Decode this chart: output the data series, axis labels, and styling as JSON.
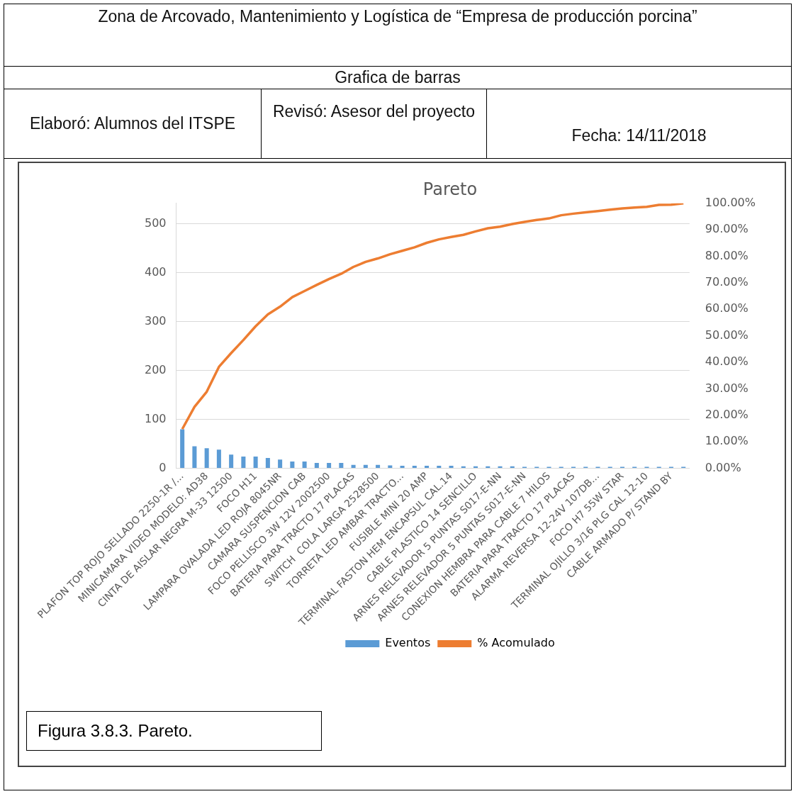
{
  "chart_data": {
    "type": "bar",
    "title": "Pareto",
    "annotations": [
      "Zona de Arcovado, Mantenimiento y Logística de “Empresa de producción porcina”",
      "Grafica de barras",
      "Elaboró: Alumnos del ITSPE",
      "Revisó:  Asesor del proyecto",
      "Fecha:   14/11/2018",
      "Figura 3.8.3. Pareto."
    ],
    "categories": [
      "PLAFON TOP ROJO SELLADO 2250-1R /...",
      null,
      "MINICAMARA VIDEO MODELO: AD38",
      null,
      "CINTA DE AISLAR NEGRA M-33 12500",
      null,
      "FOCO H11",
      null,
      "LAMPARA OVALADA LED ROJA 8045NR",
      null,
      "CAMARA SUSPENCION CAB",
      null,
      "FOCO PELLISCO 3W 12V 2002500",
      null,
      "BATERIA PARA TRACTO 17 PLACAS",
      null,
      "SWITCH  COLA LARGA 2528500",
      null,
      "TORRETA LED AMBAR TRACTO...",
      null,
      "FUSIBLE MINI 20 AMP",
      null,
      "TERMINAL FASTON HEM ENCAPSUL CAL.14",
      null,
      "CABLE PLASTICO 14 SENCILLO",
      null,
      "ARNES RELEVADOR 5 PUNTAS S017-E-NN",
      null,
      "ARNES RELEVADOR 5 PUNTAS S017-E-NN",
      null,
      "CONEXION HEMBRA PARA CABLE 7 HILOS",
      null,
      "BATERIA PARA TRACTO 17 PLACAS",
      null,
      "ALARMA REVERSA 12-24V 107DB...",
      null,
      "FOCO H7 55W STAR",
      null,
      "TERMINAL OJILLO 3/16 PLG CAL 12-10",
      null,
      "CABLE ARMADO P/ STAND BY",
      null
    ],
    "series": [
      {
        "name": "Eventos",
        "color": "#5b9bd5",
        "values": [
          80,
          45,
          41,
          38,
          28,
          24,
          24,
          21,
          18,
          14,
          14,
          11,
          11,
          11,
          7,
          7,
          7,
          6,
          5,
          5,
          5,
          5,
          5,
          4,
          4,
          4,
          4,
          4,
          3,
          3,
          3,
          3,
          3,
          3,
          3,
          3,
          3,
          3,
          3,
          3,
          3,
          3
        ]
      },
      {
        "name": "% Acomulado",
        "type": "line",
        "axis": "y2",
        "color": "#ed7d31",
        "values": [
          14.8,
          23.2,
          28.9,
          38.3,
          43.5,
          48.4,
          53.6,
          58.1,
          61.0,
          64.6,
          66.9,
          69.2,
          71.4,
          73.4,
          76.0,
          77.9,
          79.2,
          80.8,
          82.1,
          83.4,
          85.1,
          86.4,
          87.3,
          88.1,
          89.4,
          90.6,
          91.2,
          92.2,
          93.0,
          93.7,
          94.3,
          95.5,
          96.1,
          96.6,
          97.1,
          97.6,
          98.1,
          98.4,
          98.7,
          99.4,
          99.5,
          100
        ]
      }
    ],
    "ylim": [
      0,
      542
    ],
    "yticks": [
      0,
      100,
      200,
      300,
      400,
      500
    ],
    "y2lim": [
      0,
      100
    ],
    "y2ticks": [
      {
        "value": 0,
        "label": "0.00%"
      },
      {
        "value": 10,
        "label": "10.00%"
      },
      {
        "value": 20,
        "label": "20.00%"
      },
      {
        "value": 30,
        "label": "30.00%"
      },
      {
        "value": 40,
        "label": "40.00%"
      },
      {
        "value": 50,
        "label": "50.00%"
      },
      {
        "value": 60,
        "label": "60.00%"
      },
      {
        "value": 70,
        "label": "70.00%"
      },
      {
        "value": 80,
        "label": "80.00%"
      },
      {
        "value": 90,
        "label": "90.00%"
      },
      {
        "value": 100,
        "label": "100.00%"
      }
    ],
    "grid": "y",
    "legend": "bottom",
    "marker": "none"
  }
}
